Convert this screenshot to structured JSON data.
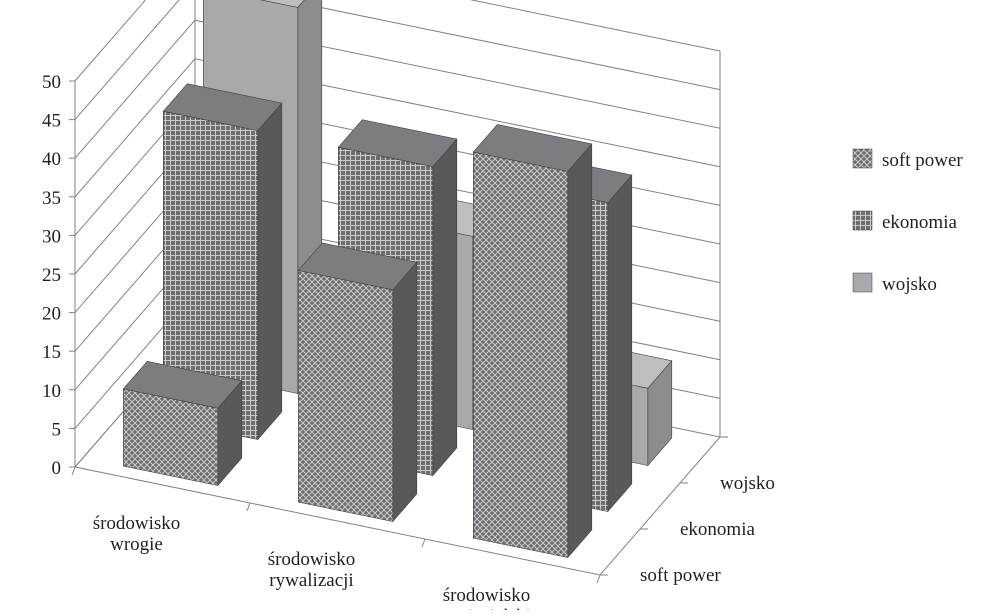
{
  "chart_data": {
    "type": "bar",
    "subtype": "3d-column",
    "categories": [
      "środowisko\nwrogie",
      "środowisko\nrywalizacji",
      "środowisko\nprzyjacielskie"
    ],
    "series": [
      {
        "name": "soft power",
        "values": [
          10,
          30,
          50
        ],
        "pattern": "crosshatch"
      },
      {
        "name": "ekonomia",
        "values": [
          40,
          40,
          40
        ],
        "pattern": "grid"
      },
      {
        "name": "wojsko",
        "values": [
          50,
          25,
          10
        ],
        "pattern": "solid"
      }
    ],
    "ylim": [
      0,
      50
    ],
    "yticks": [
      "0",
      "5",
      "10",
      "15",
      "20",
      "25",
      "30",
      "35",
      "40",
      "45",
      "50"
    ],
    "depth_axis_labels": [
      "soft power",
      "ekonomia",
      "wojsko"
    ],
    "legend": {
      "position": "right",
      "entries": [
        "soft power",
        "ekonomia",
        "wojsko"
      ]
    },
    "grid": true,
    "colors": {
      "front": "#6d6e71",
      "side": "#58595b",
      "top": "#7c7d80",
      "wojsko_front": "#a7a9ac",
      "wojsko_side": "#8a8c8e",
      "axis": "#808285"
    }
  }
}
